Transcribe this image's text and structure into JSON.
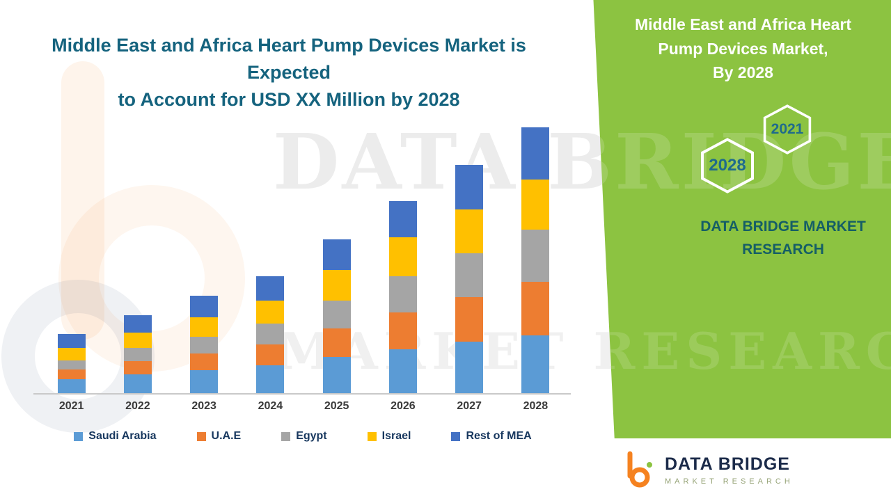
{
  "header": {
    "title_lines": [
      "Middle East and Africa Heart Pump Devices Market is Expected",
      "to Account for USD XX Million by 2028"
    ]
  },
  "chart_data": {
    "type": "bar",
    "stacked": true,
    "title": "Middle East and Africa Heart Pump Devices Market is Expected to Account for USD XX Million by 2028",
    "categories": [
      "2021",
      "2022",
      "2023",
      "2024",
      "2025",
      "2026",
      "2027",
      "2028"
    ],
    "series": [
      {
        "name": "Saudi Arabia",
        "color": "#5B9BD5",
        "values": [
          20,
          27,
          33,
          40,
          52,
          63,
          74,
          83
        ]
      },
      {
        "name": "U.A.E",
        "color": "#ED7D31",
        "values": [
          14,
          19,
          24,
          30,
          41,
          53,
          64,
          77
        ]
      },
      {
        "name": "Egypt",
        "color": "#A5A5A5",
        "values": [
          13,
          19,
          24,
          30,
          40,
          52,
          63,
          75
        ]
      },
      {
        "name": "Israel",
        "color": "#FFC000",
        "values": [
          18,
          22,
          28,
          33,
          44,
          56,
          63,
          72
        ]
      },
      {
        "name": "Rest of MEA",
        "color": "#4472C4",
        "values": [
          20,
          25,
          31,
          35,
          44,
          52,
          64,
          75
        ]
      }
    ],
    "units": "relative bar height (no y-axis values shown; actual values undisclosed as XX)",
    "legend_position": "bottom",
    "grid": false
  },
  "watermark": {
    "line1": "DATA BRIDGE",
    "line2": "MARKET RESEARCH"
  },
  "panel": {
    "bg_color": "#8CC341",
    "title_lines": [
      "Middle East and Africa Heart",
      "Pump Devices Market,",
      "By 2028"
    ],
    "badges": [
      {
        "label": "2021"
      },
      {
        "label": "2028"
      }
    ],
    "brand_lines": [
      "DATA BRIDGE MARKET",
      "RESEARCH"
    ]
  },
  "footer": {
    "brand": "DATA BRIDGE",
    "subtitle": "MARKET RESEARCH"
  }
}
